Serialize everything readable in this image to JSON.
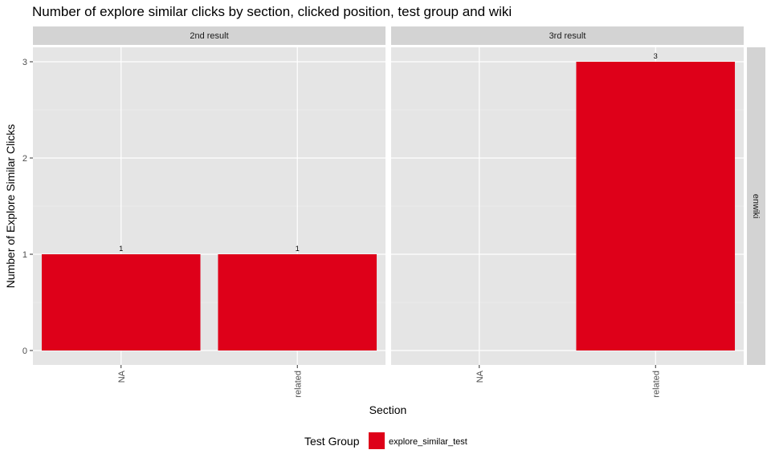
{
  "chart_data": {
    "type": "bar",
    "title": "Number of explore similar clicks by section, clicked position, test group and wiki",
    "xlabel": "Section",
    "ylabel": "Number of Explore Similar Clicks",
    "categories": [
      "NA",
      "related"
    ],
    "ylim": [
      0,
      3.15
    ],
    "yticks": [
      0,
      1,
      2,
      3
    ],
    "row_facets": [
      "enwiki"
    ],
    "panels": [
      {
        "facet": "2nd result",
        "series": [
          {
            "name": "explore_similar_test",
            "values": [
              1,
              1
            ]
          }
        ]
      },
      {
        "facet": "3rd result",
        "series": [
          {
            "name": "explore_similar_test",
            "values": [
              null,
              3
            ]
          }
        ]
      }
    ],
    "grid": true,
    "legend": {
      "position": "bottom",
      "title": "Test Group",
      "entries": [
        "explore_similar_test"
      ]
    },
    "colors": {
      "explore_similar_test": "#de0019",
      "panel_background": "#e5e5e5",
      "strip_background": "#d3d3d3"
    }
  }
}
